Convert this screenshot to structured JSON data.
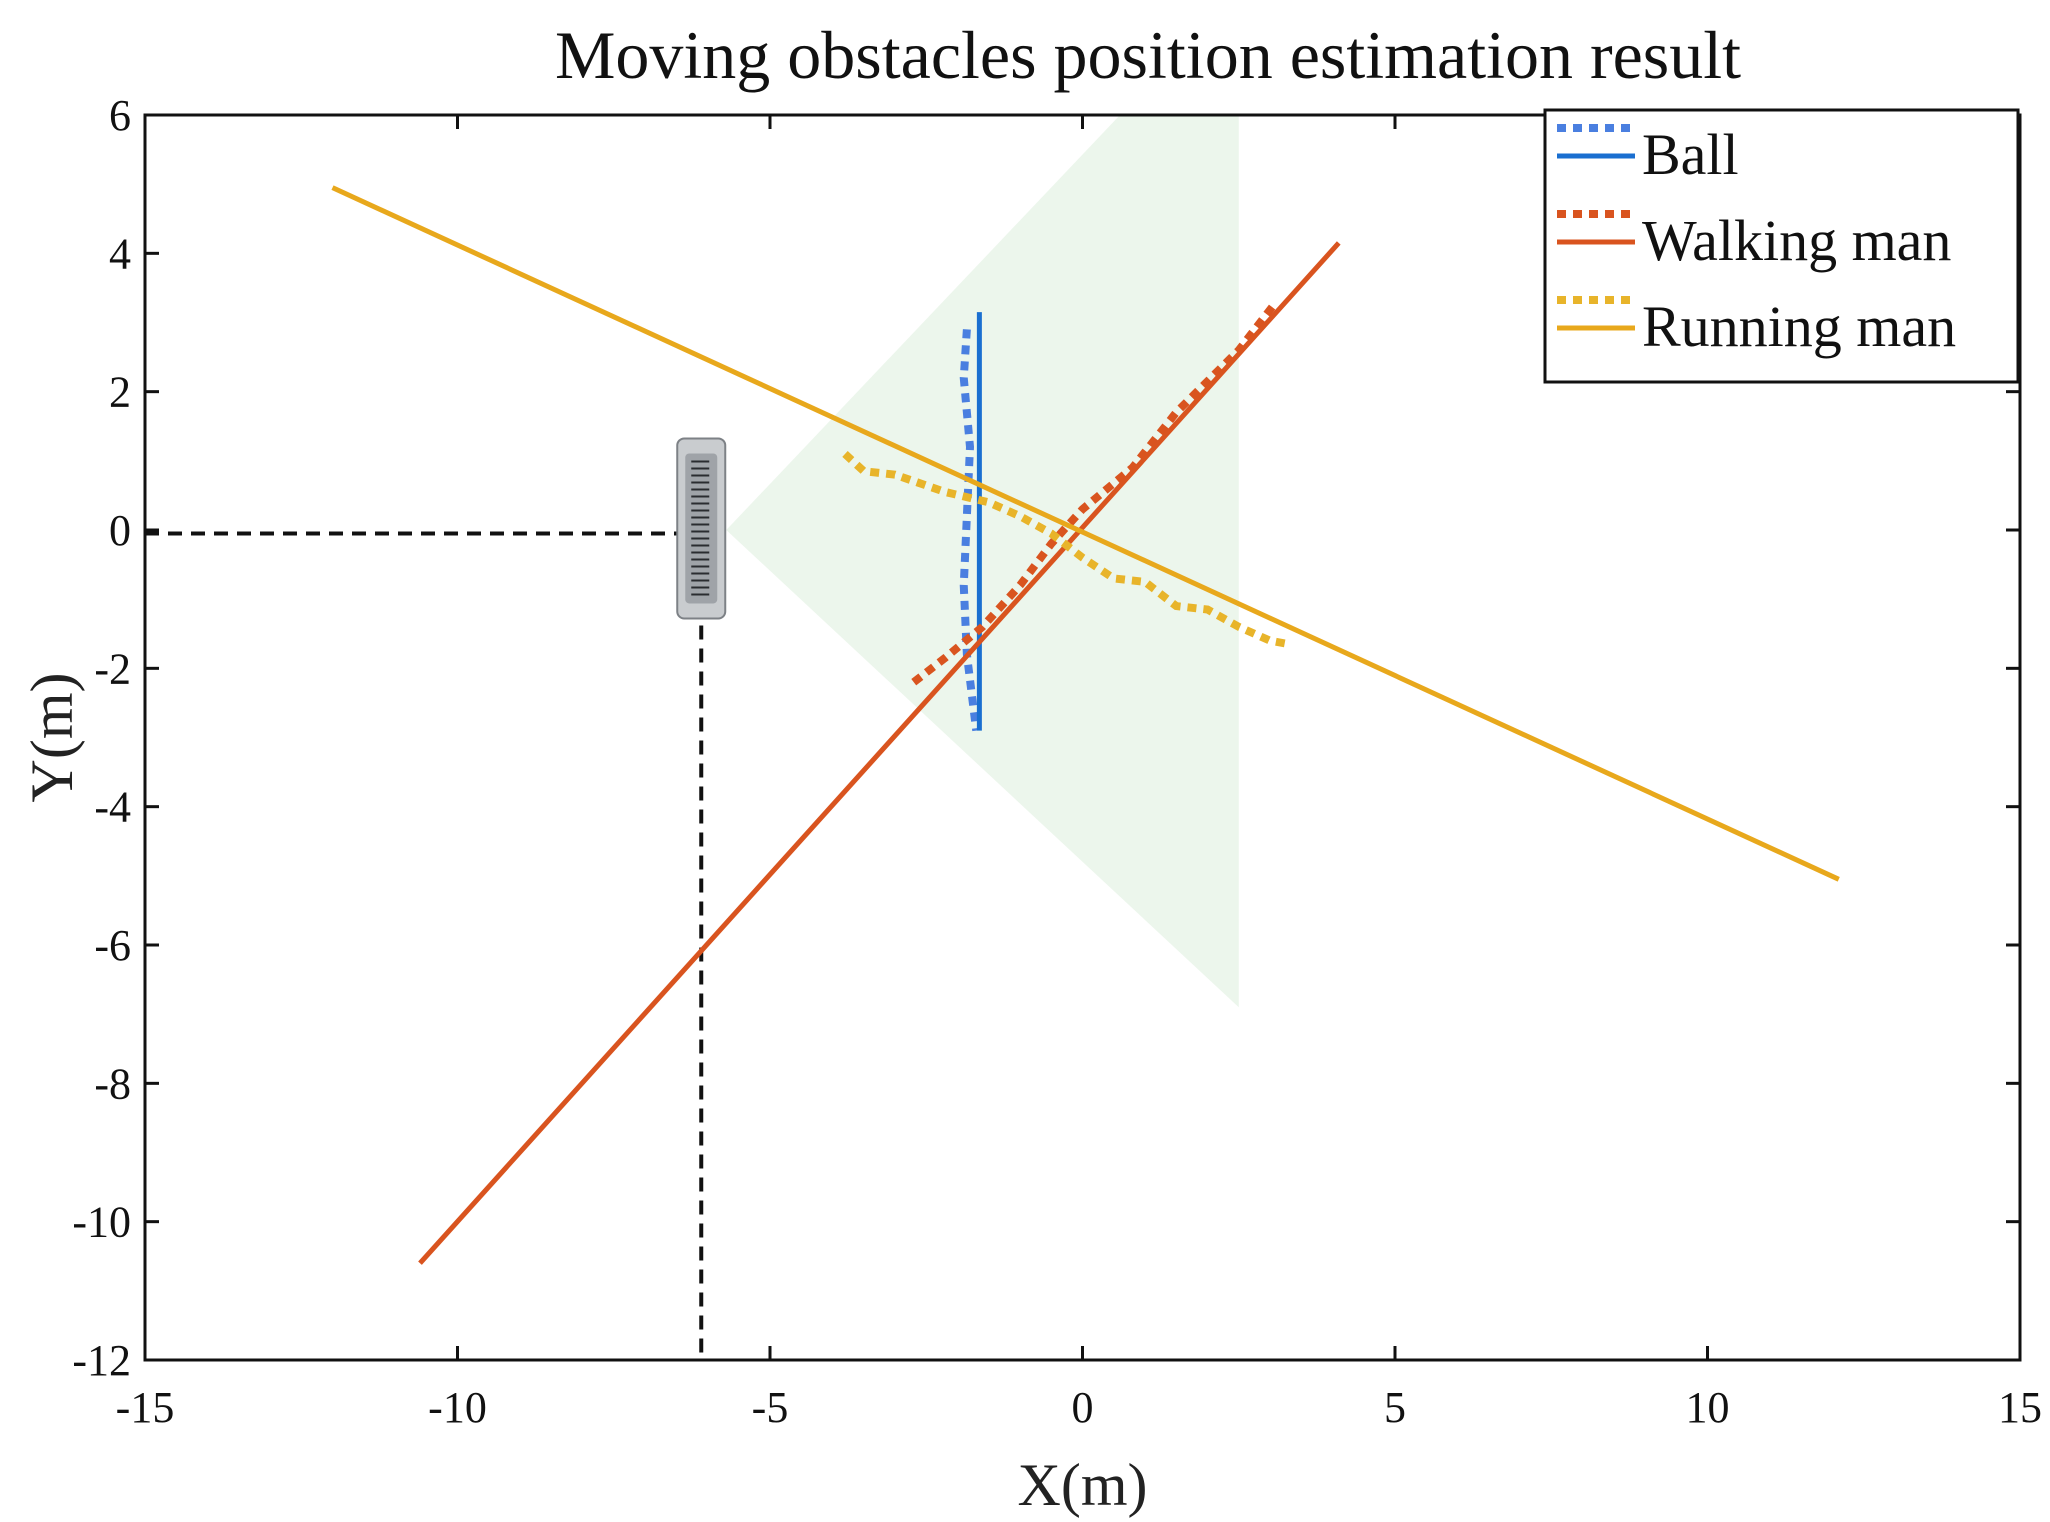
{
  "chart_data": {
    "type": "line",
    "title": "Moving obstacles position estimation result",
    "xlabel": "X(m)",
    "ylabel": "Y(m)",
    "xlim": [
      -15,
      15
    ],
    "ylim": [
      -12,
      6
    ],
    "xticks": [
      -15,
      -10,
      -5,
      0,
      5,
      10,
      15
    ],
    "yticks": [
      6,
      4,
      2,
      0,
      -2,
      -4,
      -6,
      -8,
      -10,
      -12
    ],
    "legend_placement": "top-right",
    "grid": false,
    "sensor_position": {
      "x": -6.1,
      "y": -0.05
    },
    "fov_region": {
      "color": "#e6f3e6",
      "points": [
        [
          -5.7,
          0.0
        ],
        [
          0.6,
          6.0
        ],
        [
          2.5,
          6.0
        ],
        [
          2.5,
          -6.9
        ]
      ]
    },
    "series": [
      {
        "name": "Ball",
        "kind": "estimated",
        "style": "dotted",
        "color": "#4a7fe0",
        "points": [
          [
            -1.85,
            2.9
          ],
          [
            -1.9,
            2.2
          ],
          [
            -1.8,
            1.2
          ],
          [
            -1.85,
            0.2
          ],
          [
            -1.9,
            -0.8
          ],
          [
            -1.85,
            -1.8
          ],
          [
            -1.7,
            -2.9
          ]
        ]
      },
      {
        "name": "Ball",
        "kind": "true",
        "style": "solid",
        "color": "#1a6fd0",
        "points": [
          [
            -1.65,
            3.15
          ],
          [
            -1.65,
            -2.9
          ]
        ]
      },
      {
        "name": "Walking man",
        "kind": "estimated",
        "style": "dotted",
        "color": "#d9541f",
        "points": [
          [
            -2.7,
            -2.2
          ],
          [
            -2.2,
            -1.85
          ],
          [
            -1.6,
            -1.4
          ],
          [
            -1.0,
            -0.8
          ],
          [
            -0.5,
            -0.2
          ],
          [
            0.0,
            0.3
          ],
          [
            0.8,
            0.9
          ],
          [
            1.5,
            1.7
          ],
          [
            2.0,
            2.15
          ],
          [
            2.5,
            2.6
          ],
          [
            3.1,
            3.3
          ]
        ]
      },
      {
        "name": "Walking man",
        "kind": "true",
        "style": "solid",
        "color": "#d9541f",
        "points": [
          [
            -10.6,
            -10.6
          ],
          [
            4.1,
            4.15
          ]
        ]
      },
      {
        "name": "Running man",
        "kind": "estimated",
        "style": "dotted",
        "color": "#e8b42a",
        "points": [
          [
            -3.8,
            1.1
          ],
          [
            -3.5,
            0.85
          ],
          [
            -3.0,
            0.8
          ],
          [
            -2.2,
            0.55
          ],
          [
            -1.5,
            0.4
          ],
          [
            -1.0,
            0.2
          ],
          [
            -0.5,
            -0.05
          ],
          [
            0.0,
            -0.4
          ],
          [
            0.5,
            -0.7
          ],
          [
            1.0,
            -0.75
          ],
          [
            1.5,
            -1.1
          ],
          [
            2.0,
            -1.15
          ],
          [
            2.5,
            -1.4
          ],
          [
            3.0,
            -1.6
          ],
          [
            3.3,
            -1.65
          ]
        ]
      },
      {
        "name": "Running man",
        "kind": "true",
        "style": "solid",
        "color": "#e8a81c",
        "points": [
          [
            -12.0,
            4.95
          ],
          [
            12.1,
            -5.05
          ]
        ]
      }
    ]
  }
}
